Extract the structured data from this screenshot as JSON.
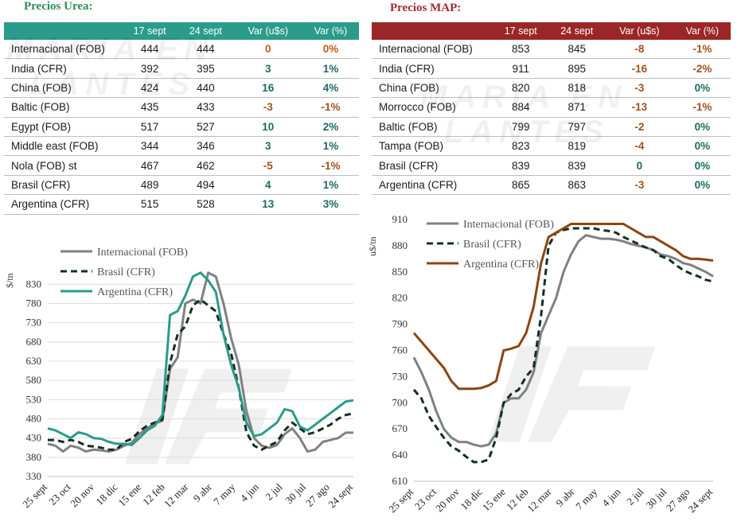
{
  "urea": {
    "title": "Precios Urea:",
    "headers": [
      "",
      "17 sept",
      "24 sept",
      "Var (u$s)",
      "Var (%)"
    ],
    "rows": [
      {
        "name": "Internacional (FOB)",
        "v1": "444",
        "v2": "444",
        "var": "0",
        "pct": "0%"
      },
      {
        "name": "India (CFR)",
        "v1": "392",
        "v2": "395",
        "var": "3",
        "pct": "1%"
      },
      {
        "name": "China (FOB)",
        "v1": "424",
        "v2": "440",
        "var": "16",
        "pct": "4%"
      },
      {
        "name": "Baltic (FOB)",
        "v1": "435",
        "v2": "433",
        "var": "-3",
        "pct": "-1%"
      },
      {
        "name": "Egypt (FOB)",
        "v1": "517",
        "v2": "527",
        "var": "10",
        "pct": "2%"
      },
      {
        "name": "Middle east (FOB)",
        "v1": "344",
        "v2": "346",
        "var": "3",
        "pct": "1%"
      },
      {
        "name": "Nola (FOB) st",
        "v1": "467",
        "v2": "462",
        "var": "-5",
        "pct": "-1%"
      },
      {
        "name": "Brasil (CFR)",
        "v1": "489",
        "v2": "494",
        "var": "4",
        "pct": "1%"
      },
      {
        "name": "Argentina (CFR)",
        "v1": "515",
        "v2": "528",
        "var": "13",
        "pct": "3%"
      }
    ]
  },
  "map": {
    "title": "Precios MAP:",
    "headers": [
      "",
      "17 sept",
      "24 sept",
      "Var (u$s)",
      "Var (%)"
    ],
    "rows": [
      {
        "name": "Internacional (FOB)",
        "v1": "853",
        "v2": "845",
        "var": "-8",
        "pct": "-1%"
      },
      {
        "name": "India (CFR)",
        "v1": "911",
        "v2": "895",
        "var": "-16",
        "pct": "-2%"
      },
      {
        "name": "China (FOB)",
        "v1": "820",
        "v2": "818",
        "var": "-3",
        "pct": "0%"
      },
      {
        "name": "Morrocco (FOB)",
        "v1": "884",
        "v2": "871",
        "var": "-13",
        "pct": "-1%"
      },
      {
        "name": "Baltic (FOB)",
        "v1": "799",
        "v2": "797",
        "var": "-2",
        "pct": "0%"
      },
      {
        "name": "Tampa (FOB)",
        "v1": "823",
        "v2": "819",
        "var": "-4",
        "pct": "0%"
      },
      {
        "name": "Brasil (CFR)",
        "v1": "839",
        "v2": "839",
        "var": "0",
        "pct": "0%"
      },
      {
        "name": "Argentina (CFR)",
        "v1": "865",
        "v2": "863",
        "var": "-3",
        "pct": "0%"
      }
    ]
  },
  "watermark": {
    "line1": "MARIA EN",
    "line2": "LANTES",
    "mark": "®"
  },
  "colors": {
    "urea_header": "#2b9b8a",
    "map_header": "#9b2626",
    "urea_title": "#2e8b57",
    "map_title": "#a52a2a",
    "negative": "#a0521d",
    "positive": "#1d6b60",
    "internacional": "#808080",
    "brasil": "#12301f",
    "argentina_urea": "#2b9b8a",
    "argentina_map": "#8b4513",
    "grid": "#dddddd"
  },
  "chart_data": [
    {
      "type": "line",
      "ylabel": "$/tn",
      "ylim": [
        330,
        870
      ],
      "yticks": [
        330,
        380,
        430,
        480,
        530,
        580,
        630,
        680,
        730,
        780,
        830
      ],
      "x_labels": [
        "25 sept",
        "23 oct",
        "20 nov",
        "18 dic",
        "15 ene",
        "12 feb",
        "12 mar",
        "9 abr",
        "7 may",
        "4 jun",
        "2 jul",
        "30 jul",
        "27 ago",
        "24 sept"
      ],
      "grid": true,
      "legend_position": "top-left",
      "series": [
        {
          "name": "Internacional (FOB)",
          "style": "solid",
          "values": [
            415,
            410,
            395,
            410,
            405,
            395,
            400,
            398,
            395,
            400,
            410,
            418,
            440,
            455,
            468,
            475,
            610,
            640,
            780,
            790,
            780,
            860,
            850,
            780,
            690,
            620,
            500,
            430,
            410,
            405,
            412,
            440,
            455,
            430,
            395,
            400,
            420,
            425,
            430,
            444,
            444
          ]
        },
        {
          "name": "Brasil (CFR)",
          "style": "dashed",
          "values": [
            425,
            425,
            420,
            425,
            420,
            410,
            408,
            405,
            400,
            400,
            420,
            428,
            448,
            462,
            470,
            478,
            625,
            700,
            720,
            775,
            790,
            775,
            760,
            700,
            650,
            560,
            445,
            410,
            400,
            410,
            420,
            450,
            470,
            455,
            440,
            445,
            455,
            465,
            480,
            490,
            494
          ]
        },
        {
          "name": "Argentina (CFR)",
          "style": "solid",
          "values": [
            455,
            450,
            440,
            430,
            445,
            440,
            430,
            428,
            420,
            415,
            415,
            412,
            430,
            450,
            462,
            490,
            750,
            760,
            800,
            850,
            860,
            840,
            810,
            700,
            620,
            560,
            470,
            435,
            440,
            455,
            470,
            505,
            500,
            460,
            450,
            465,
            480,
            495,
            510,
            525,
            528
          ]
        }
      ]
    },
    {
      "type": "line",
      "ylabel": "u$/tn",
      "ylim": [
        610,
        910
      ],
      "yticks": [
        610,
        640,
        670,
        700,
        730,
        760,
        790,
        820,
        850,
        880,
        910
      ],
      "x_labels": [
        "25 sept",
        "23 oct",
        "20 nov",
        "18 dic",
        "15 ene",
        "12 feb",
        "12 mar",
        "9 abr",
        "7 may",
        "4 jun",
        "2 jul",
        "30 jul",
        "27 ago",
        "24 sept"
      ],
      "grid": false,
      "legend_position": "top-left",
      "series": [
        {
          "name": "Internacional (FOB)",
          "style": "solid",
          "values": [
            752,
            735,
            715,
            690,
            670,
            660,
            655,
            655,
            652,
            650,
            652,
            665,
            700,
            705,
            705,
            715,
            735,
            780,
            800,
            820,
            850,
            870,
            885,
            892,
            890,
            888,
            888,
            887,
            885,
            882,
            880,
            878,
            875,
            870,
            868,
            865,
            860,
            858,
            854,
            850,
            845
          ]
        },
        {
          "name": "Brasil (CFR)",
          "style": "dashed",
          "values": [
            715,
            705,
            685,
            672,
            660,
            650,
            645,
            638,
            632,
            632,
            635,
            660,
            700,
            710,
            715,
            730,
            740,
            800,
            880,
            895,
            898,
            900,
            900,
            900,
            900,
            898,
            897,
            895,
            890,
            886,
            882,
            878,
            875,
            868,
            865,
            858,
            852,
            848,
            845,
            841,
            839
          ]
        },
        {
          "name": "Argentina (CFR)",
          "style": "solid",
          "values": [
            780,
            770,
            760,
            750,
            740,
            725,
            716,
            716,
            716,
            717,
            720,
            725,
            760,
            762,
            765,
            780,
            810,
            860,
            890,
            895,
            900,
            905,
            905,
            905,
            905,
            905,
            905,
            905,
            905,
            900,
            895,
            890,
            890,
            885,
            880,
            875,
            868,
            865,
            865,
            864,
            863
          ]
        }
      ]
    }
  ]
}
